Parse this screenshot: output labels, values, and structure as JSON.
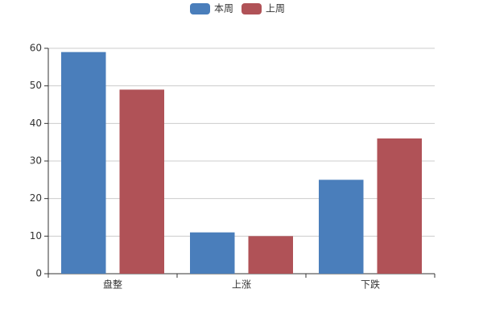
{
  "chart_data": {
    "type": "bar",
    "categories": [
      "盘整",
      "上涨",
      "下跌"
    ],
    "series": [
      {
        "name": "本周",
        "color": "#4a7ebb",
        "values": [
          59,
          11,
          25
        ]
      },
      {
        "name": "上周",
        "color": "#b05257",
        "values": [
          49,
          10,
          36
        ]
      }
    ],
    "ylim": [
      0,
      60
    ],
    "yticks": [
      0,
      10,
      20,
      30,
      40,
      50,
      60
    ],
    "grid": true,
    "legend": "top"
  }
}
